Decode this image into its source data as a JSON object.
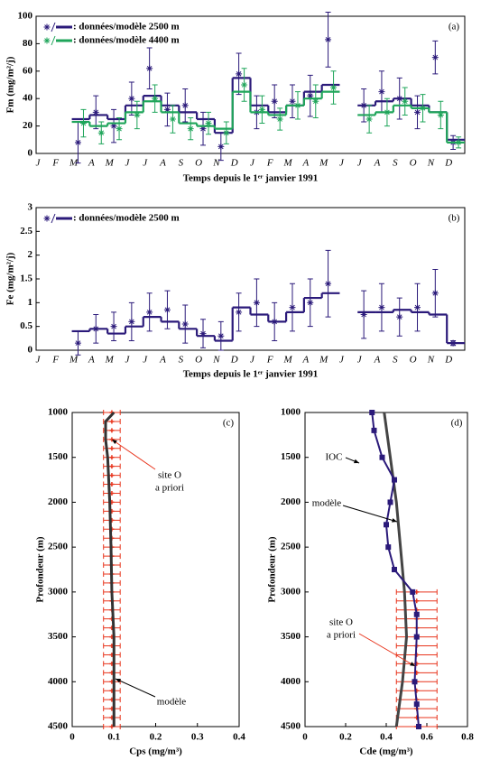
{
  "chart_data": [
    {
      "type": "line",
      "label": "(a)",
      "ylabel": "Fm (mg/m²/j)",
      "xlabel": "Temps depuis le 1ᵉʳ janvier 1991",
      "categories": [
        "J",
        "F",
        "M",
        "A",
        "M",
        "J",
        "J",
        "A",
        "S",
        "O",
        "N",
        "D",
        "J",
        "F",
        "M",
        "A",
        "M",
        "J",
        "J",
        "A",
        "S",
        "O",
        "N",
        "D"
      ],
      "ylim": [
        0,
        100
      ],
      "yticks": [
        0,
        20,
        40,
        60,
        80,
        100
      ],
      "legend": "upper left",
      "series": [
        {
          "name": ": données/modèle 2500 m",
          "color": "#2b1a7a",
          "values": [
            null,
            null,
            25,
            28,
            25,
            35,
            42,
            35,
            30,
            25,
            15,
            55,
            35,
            30,
            35,
            45,
            50,
            null,
            35,
            38,
            40,
            35,
            30,
            10
          ],
          "observations": [
            null,
            null,
            8,
            30,
            20,
            40,
            62,
            32,
            35,
            18,
            5,
            58,
            30,
            38,
            38,
            42,
            83,
            null,
            35,
            45,
            40,
            30,
            70,
            8
          ],
          "errors": [
            null,
            null,
            15,
            12,
            12,
            12,
            15,
            12,
            12,
            12,
            10,
            15,
            12,
            12,
            12,
            15,
            20,
            null,
            12,
            15,
            15,
            12,
            12,
            5
          ]
        },
        {
          "name": ": données/modèle 4400 m",
          "color": "#1fa55a",
          "values": [
            null,
            null,
            23,
            20,
            22,
            30,
            38,
            30,
            22,
            20,
            18,
            45,
            30,
            28,
            35,
            40,
            45,
            null,
            28,
            30,
            35,
            33,
            30,
            8
          ],
          "observations": [
            null,
            null,
            22,
            15,
            18,
            28,
            40,
            25,
            18,
            22,
            15,
            50,
            32,
            25,
            35,
            38,
            48,
            null,
            25,
            30,
            38,
            33,
            28,
            8
          ],
          "errors": [
            null,
            null,
            10,
            8,
            8,
            10,
            10,
            10,
            8,
            8,
            8,
            12,
            10,
            8,
            10,
            12,
            12,
            null,
            10,
            10,
            10,
            10,
            10,
            4
          ]
        }
      ]
    },
    {
      "type": "line",
      "label": "(b)",
      "ylabel": "Fe (mg/m²/j)",
      "xlabel": "Temps depuis le 1ᵉʳ janvier 1991",
      "categories": [
        "J",
        "F",
        "M",
        "A",
        "M",
        "J",
        "J",
        "A",
        "S",
        "O",
        "N",
        "D",
        "J",
        "F",
        "M",
        "A",
        "M",
        "J",
        "J",
        "A",
        "S",
        "O",
        "N",
        "D"
      ],
      "ylim": [
        0,
        3
      ],
      "yticks": [
        0,
        0.5,
        1,
        1.5,
        2,
        2.5,
        3
      ],
      "legend": "upper left",
      "series": [
        {
          "name": ": données/modèle 2500 m",
          "color": "#2b1a7a",
          "values": [
            null,
            null,
            0.4,
            0.45,
            0.35,
            0.5,
            0.7,
            0.6,
            0.45,
            0.3,
            0.2,
            0.9,
            0.75,
            0.6,
            0.8,
            1.1,
            1.2,
            null,
            0.8,
            0.8,
            0.85,
            0.8,
            0.75,
            0.15
          ],
          "observations": [
            null,
            null,
            0.15,
            0.45,
            0.5,
            0.6,
            0.8,
            0.85,
            0.55,
            0.35,
            0.3,
            0.8,
            1.0,
            0.6,
            0.9,
            1.0,
            1.4,
            null,
            0.75,
            0.9,
            0.7,
            0.9,
            1.2,
            0.15
          ],
          "errors": [
            null,
            null,
            0.25,
            0.3,
            0.3,
            0.4,
            0.4,
            0.4,
            0.4,
            0.3,
            0.3,
            0.4,
            0.5,
            0.4,
            0.5,
            0.5,
            0.7,
            null,
            0.5,
            0.5,
            0.4,
            0.5,
            0.5,
            0.05
          ]
        }
      ]
    },
    {
      "type": "profile",
      "label": "(c)",
      "ylabel": "Profondeur (m)",
      "xlabel": "Cps (mg/m³)",
      "xlim": [
        0,
        0.4
      ],
      "xticks": [
        0,
        0.1,
        0.2,
        0.3,
        0.4
      ],
      "ylim": [
        1000,
        4500
      ],
      "yticks": [
        1000,
        1500,
        2000,
        2500,
        3000,
        3500,
        4000,
        4500
      ],
      "yreverse": true,
      "annotations": [
        "site O",
        "a priori",
        "modèle"
      ],
      "series": [
        {
          "color": "#e8341c",
          "marker": "plus",
          "y": [
            1000,
            1100,
            1200,
            1300,
            1400,
            1500,
            1600,
            1700,
            1800,
            1900,
            2000,
            2100,
            2200,
            2300,
            2400,
            2500,
            2600,
            2700,
            2800,
            2900,
            3000,
            3100,
            3200,
            3300,
            3400,
            3500,
            3600,
            3700,
            3800,
            3900,
            4000,
            4100,
            4200,
            4300,
            4400,
            4500
          ],
          "x": [
            0.095,
            0.095,
            0.095,
            0.095,
            0.095,
            0.095,
            0.095,
            0.095,
            0.095,
            0.095,
            0.095,
            0.095,
            0.095,
            0.095,
            0.095,
            0.095,
            0.095,
            0.095,
            0.095,
            0.095,
            0.095,
            0.095,
            0.095,
            0.095,
            0.095,
            0.095,
            0.095,
            0.095,
            0.095,
            0.095,
            0.095,
            0.095,
            0.095,
            0.095,
            0.095,
            0.095
          ],
          "xerr": [
            0.02,
            0.02,
            0.02,
            0.02,
            0.02,
            0.02,
            0.02,
            0.02,
            0.02,
            0.02,
            0.02,
            0.02,
            0.02,
            0.02,
            0.02,
            0.02,
            0.02,
            0.02,
            0.02,
            0.02,
            0.02,
            0.02,
            0.02,
            0.02,
            0.02,
            0.02,
            0.02,
            0.02,
            0.02,
            0.02,
            0.02,
            0.02,
            0.02,
            0.02,
            0.02,
            0.02
          ]
        },
        {
          "color": "#333333",
          "marker": "none",
          "y": [
            1000,
            1100,
            1300,
            1500,
            2000,
            2500,
            3000,
            3500,
            3800,
            4000,
            4500
          ],
          "x": [
            0.1,
            0.08,
            0.08,
            0.085,
            0.09,
            0.093,
            0.095,
            0.1,
            0.1,
            0.1,
            0.1
          ]
        }
      ]
    },
    {
      "type": "profile",
      "label": "(d)",
      "ylabel": "Profondeur (m)",
      "xlabel": "Cde (mg/m³)",
      "xlim": [
        0,
        0.8
      ],
      "xticks": [
        0,
        0.2,
        0.4,
        0.6,
        0.8
      ],
      "ylim": [
        1000,
        4500
      ],
      "yticks": [
        1000,
        1500,
        2000,
        2500,
        3000,
        3500,
        4000,
        4500
      ],
      "yreverse": true,
      "annotations": [
        "IOC",
        "modèle",
        "site O",
        "a priori"
      ],
      "series": [
        {
          "color": "#e8341c",
          "marker": "plus",
          "y": [
            3000,
            3100,
            3200,
            3300,
            3400,
            3500,
            3600,
            3700,
            3800,
            3900,
            4000,
            4100,
            4200,
            4300,
            4400,
            4500
          ],
          "x": [
            0.55,
            0.55,
            0.55,
            0.55,
            0.55,
            0.55,
            0.55,
            0.55,
            0.55,
            0.55,
            0.55,
            0.55,
            0.55,
            0.55,
            0.55,
            0.55
          ],
          "xerr": [
            0.1,
            0.1,
            0.1,
            0.1,
            0.1,
            0.1,
            0.1,
            0.1,
            0.1,
            0.1,
            0.1,
            0.1,
            0.1,
            0.1,
            0.1,
            0.1
          ]
        },
        {
          "color": "#444444",
          "marker": "none",
          "y": [
            1000,
            1500,
            2000,
            2500,
            3000,
            3500,
            4000,
            4500
          ],
          "x": [
            0.39,
            0.42,
            0.45,
            0.47,
            0.49,
            0.5,
            0.48,
            0.45
          ]
        },
        {
          "color": "#2b1a7a",
          "marker": "square",
          "y": [
            1000,
            1200,
            1500,
            1750,
            2000,
            2250,
            2500,
            2750,
            3000,
            3250,
            3500,
            4000,
            4250,
            4500
          ],
          "x": [
            0.33,
            0.34,
            0.38,
            0.44,
            0.42,
            0.4,
            0.41,
            0.44,
            0.53,
            0.55,
            0.55,
            0.54,
            0.55,
            0.56
          ]
        }
      ]
    }
  ]
}
